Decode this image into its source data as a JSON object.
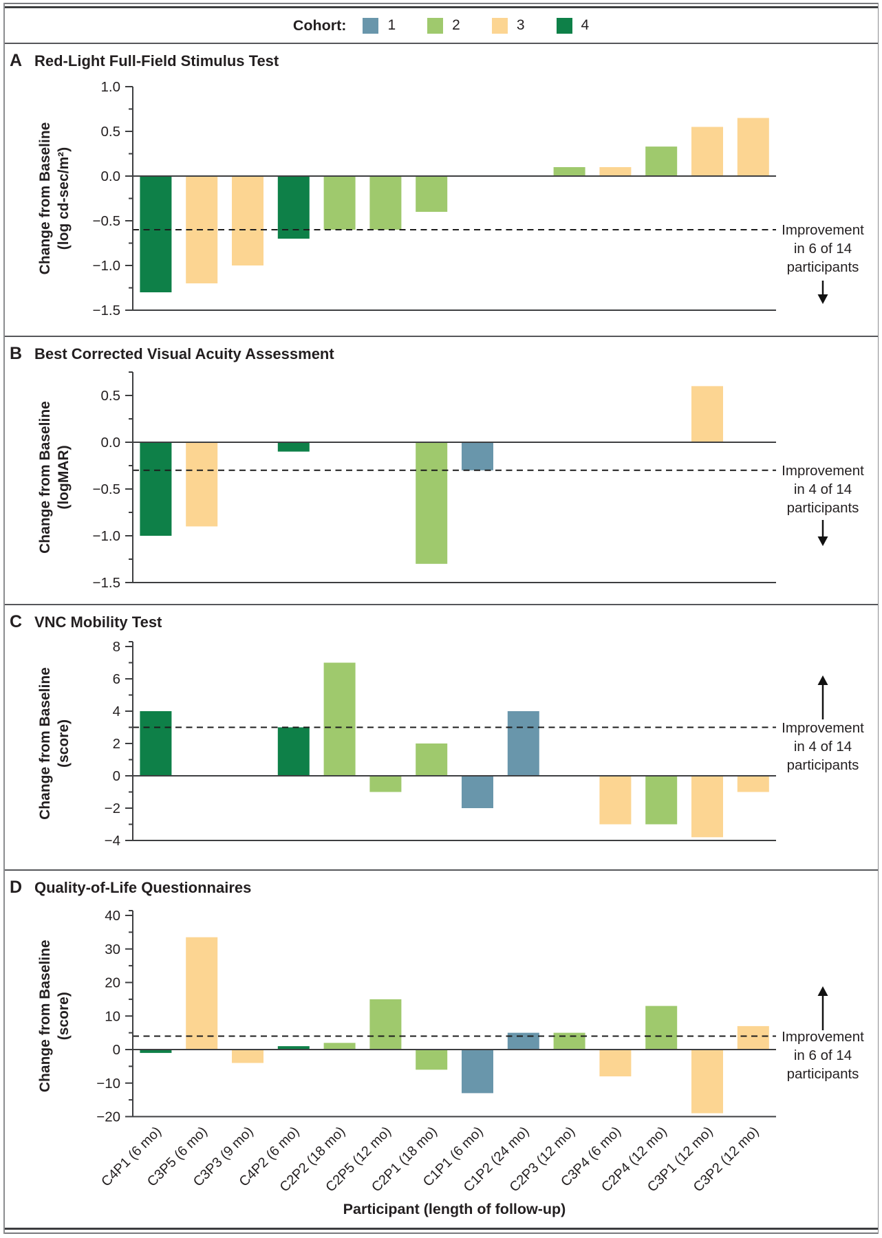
{
  "figure": {
    "x_axis_title": "Participant (length of follow-up)"
  },
  "legend": {
    "label": "Cohort:",
    "items": [
      {
        "number": "1",
        "color": "#6996ab"
      },
      {
        "number": "2",
        "color": "#9fc96d"
      },
      {
        "number": "3",
        "color": "#fcd592"
      },
      {
        "number": "4",
        "color": "#0e8048"
      }
    ]
  },
  "participants": [
    {
      "id": "C4P1",
      "label": "C4P1 (6 mo)",
      "cohort": "4"
    },
    {
      "id": "C3P5",
      "label": "C3P5 (6 mo)",
      "cohort": "3"
    },
    {
      "id": "C3P3",
      "label": "C3P3 (9 mo)",
      "cohort": "3"
    },
    {
      "id": "C4P2",
      "label": "C4P2 (6 mo)",
      "cohort": "4"
    },
    {
      "id": "C2P2",
      "label": "C2P2 (18 mo)",
      "cohort": "2"
    },
    {
      "id": "C2P5",
      "label": "C2P5 (12 mo)",
      "cohort": "2"
    },
    {
      "id": "C2P1",
      "label": "C2P1 (18 mo)",
      "cohort": "2"
    },
    {
      "id": "C1P1",
      "label": "C1P1 (6 mo)",
      "cohort": "1"
    },
    {
      "id": "C1P2",
      "label": "C1P2 (24 mo)",
      "cohort": "1"
    },
    {
      "id": "C2P3",
      "label": "C2P3 (12 mo)",
      "cohort": "2"
    },
    {
      "id": "C3P4",
      "label": "C3P4 (6 mo)",
      "cohort": "3"
    },
    {
      "id": "C2P4",
      "label": "C2P4 (12 mo)",
      "cohort": "2"
    },
    {
      "id": "C3P1",
      "label": "C3P1 (12 mo)",
      "cohort": "3"
    },
    {
      "id": "C3P2",
      "label": "C3P2 (12 mo)",
      "cohort": "3"
    }
  ],
  "chart_data": [
    {
      "type": "bar",
      "panel_letter": "A",
      "title": "Red-Light Full-Field Stimulus Test",
      "ylabel": [
        "Change from Baseline",
        "(log cd-sec/m²)"
      ],
      "ylim": [
        -1.5,
        1.0
      ],
      "yticks": [
        1.0,
        0.5,
        0.0,
        -0.5,
        -1.0,
        -1.5
      ],
      "ytick_labels": [
        "1.0",
        "0.5",
        "0.0",
        "−0.5",
        "−1.0",
        "−1.5"
      ],
      "yticks_minor": [
        0.75,
        0.25,
        -0.25,
        -0.75,
        -1.25
      ],
      "dashed_line_y": -0.6,
      "values": [
        -1.3,
        -1.2,
        -1.0,
        -0.7,
        -0.6,
        -0.6,
        -0.4,
        null,
        null,
        0.1,
        0.1,
        0.33,
        0.55,
        0.65
      ],
      "annotation_lines": [
        "Improvement",
        "in 6 of 14",
        "participants"
      ],
      "arrow_direction": "down"
    },
    {
      "type": "bar",
      "panel_letter": "B",
      "title": "Best Corrected Visual Acuity Assessment",
      "ylabel": [
        "Change from Baseline",
        "(logMAR)"
      ],
      "ylim": [
        -1.5,
        0.75
      ],
      "yticks": [
        0.5,
        0.0,
        -0.5,
        -1.0,
        -1.5
      ],
      "ytick_labels": [
        "0.5",
        "0.0",
        "−0.5",
        "−1.0",
        "−1.5"
      ],
      "yticks_minor": [
        0.75,
        0.25,
        -0.25,
        -0.75,
        -1.25
      ],
      "dashed_line_y": -0.3,
      "values": [
        -1.0,
        -0.9,
        null,
        -0.1,
        null,
        null,
        -1.3,
        -0.3,
        null,
        null,
        null,
        null,
        0.6,
        null
      ],
      "annotation_lines": [
        "Improvement",
        "in 4 of 14",
        "participants"
      ],
      "arrow_direction": "down"
    },
    {
      "type": "bar",
      "panel_letter": "C",
      "title": "VNC Mobility Test",
      "ylabel": [
        "Change from Baseline",
        "(score)"
      ],
      "ylim": [
        -4,
        8
      ],
      "yticks": [
        8,
        6,
        4,
        2,
        0,
        -2,
        -4
      ],
      "ytick_labels": [
        "8",
        "6",
        "4",
        "2",
        "0",
        "−2",
        "−4"
      ],
      "yticks_minor": [
        7,
        5,
        3,
        1,
        -1,
        -3
      ],
      "dashed_line_y": 3,
      "values": [
        4,
        null,
        null,
        3,
        7,
        -1,
        2,
        -2,
        4,
        null,
        -3,
        -3,
        -3.8,
        -1
      ],
      "annotation_lines": [
        "Improvement",
        "in 4 of 14",
        "participants"
      ],
      "arrow_direction": "up"
    },
    {
      "type": "bar",
      "panel_letter": "D",
      "title": "Quality-of-Life Questionnaires",
      "ylabel": [
        "Change from Baseline",
        "(score)"
      ],
      "ylim": [
        -20,
        40
      ],
      "yticks": [
        40,
        30,
        20,
        10,
        0,
        -10,
        -20
      ],
      "ytick_labels": [
        "40",
        "30",
        "20",
        "10",
        "0",
        "−10",
        "−20"
      ],
      "yticks_minor": [
        35,
        25,
        15,
        5,
        -5,
        -15
      ],
      "dashed_line_y": 4,
      "values": [
        -1,
        33.5,
        -4,
        1,
        2,
        15,
        -6,
        -13,
        5,
        5,
        -8,
        13,
        -19,
        7
      ],
      "annotation_lines": [
        "Improvement",
        "in 6 of 14",
        "participants"
      ],
      "arrow_direction": "up"
    }
  ]
}
